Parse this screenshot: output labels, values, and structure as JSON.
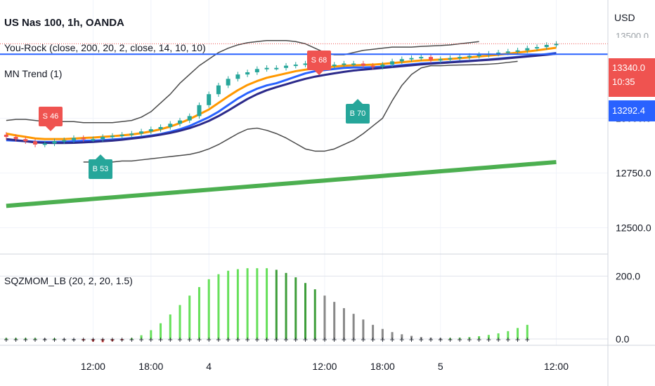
{
  "header": {
    "title": "US Nas 100, 1h, OANDA",
    "indicator1": "You-Rock (close, 200, 20, 2, close, 14, 10, 10)",
    "indicator2": "MN Trend (1)"
  },
  "oscillator": {
    "title": "SQZMOM_LB (20, 2, 20, 1.5)"
  },
  "price_axis": {
    "currency": "USD",
    "top_tick_partial": "13500.0",
    "current_price": "13340.0",
    "countdown": "10:35",
    "line_price": "13292.4"
  },
  "colors": {
    "up_candle": "#26a69a",
    "down_candle": "#ef5350",
    "ema_orange": "#ff9800",
    "ema_blue": "#2962ff",
    "ema_navy": "#2c2a8a",
    "band_gray": "#4a4a4a",
    "ema200_green": "#4caf50",
    "hline_blue": "#2962ff",
    "mom_light_green": "#66e05a",
    "mom_dark_green": "#3e9e3a",
    "mom_gray": "#888888",
    "mom_red": "#e53935"
  },
  "signals": [
    {
      "label": "S 46",
      "type": "sell"
    },
    {
      "label": "B 53",
      "type": "buy"
    },
    {
      "label": "S 68",
      "type": "sell"
    },
    {
      "label": "B 70",
      "type": "buy"
    }
  ],
  "chart_data": [
    {
      "type": "line",
      "panel": "price",
      "title": "US Nas 100, 1h, OANDA",
      "y_ticks": [
        12500,
        12750,
        13000
      ],
      "y_tick_labels": [
        "12500.0",
        "12750.0",
        "13000.0"
      ],
      "ylim": [
        12380,
        13540
      ],
      "x_tick_labels": [
        "12:00",
        "18:00",
        "4",
        "12:00",
        "18:00",
        "5",
        "12:00"
      ],
      "x_tick_bars": [
        10,
        16,
        22,
        34,
        40,
        46,
        58
      ],
      "xlim_bars": [
        0.5,
        63.5
      ],
      "series": [
        {
          "name": "close",
          "values": [
            12915,
            12905,
            12895,
            12880,
            12885,
            12895,
            12900,
            12910,
            12905,
            12905,
            12915,
            12920,
            12925,
            12930,
            12940,
            12950,
            12960,
            12975,
            12990,
            13010,
            13060,
            13110,
            13150,
            13180,
            13200,
            13210,
            13225,
            13230,
            13230,
            13240,
            13245,
            13250,
            13245,
            13240,
            13245,
            13250,
            13250,
            13240,
            13235,
            13245,
            13260,
            13270,
            13275,
            13280,
            13265,
            13270,
            13275,
            13280,
            13285,
            13290,
            13295,
            13300,
            13305,
            13310,
            13320,
            13325,
            13335,
            13340
          ]
        },
        {
          "name": "",
          "values": [
            12900,
            12898,
            12895,
            12893,
            12892,
            12892,
            12893,
            12895,
            12897,
            12898,
            12900,
            12903,
            12906,
            12910,
            12915,
            12921,
            12928,
            12938,
            12950,
            12965,
            12985,
            13005,
            13030,
            13060,
            13090,
            13115,
            13135,
            13150,
            13160,
            13175,
            13190,
            13205,
            13215,
            13220,
            13225,
            13230,
            13232,
            13232,
            13233,
            13235,
            13238,
            13242,
            13246,
            13250,
            13252,
            13254,
            13257,
            13260,
            13262,
            13265,
            13268,
            13272,
            13276,
            13280,
            13284,
            13288,
            13293,
            13298
          ]
        },
        {
          "name": "",
          "values": [
            12930,
            12922,
            12915,
            12908,
            12905,
            12905,
            12905,
            12907,
            12910,
            12912,
            12915,
            12918,
            12922,
            12926,
            12932,
            12940,
            12950,
            12962,
            12978,
            12996,
            13018,
            13040,
            13070,
            13100,
            13128,
            13152,
            13170,
            13185,
            13195,
            13205,
            13215,
            13222,
            13228,
            13232,
            13236,
            13240,
            13242,
            13243,
            13245,
            13248,
            13252,
            13256,
            13260,
            13264,
            13266,
            13268,
            13271,
            13274,
            13278,
            13282,
            13286,
            13290,
            13295,
            13300,
            13305,
            13310,
            13316,
            13322
          ]
        },
        {
          "name": "",
          "values": [
            12905,
            12900,
            12895,
            12890,
            12888,
            12887,
            12887,
            12888,
            12890,
            12892,
            12895,
            12898,
            12902,
            12907,
            12912,
            12918,
            12925,
            12933,
            12943,
            12955,
            12970,
            12988,
            13010,
            13035,
            13062,
            13088,
            13110,
            13128,
            13142,
            13155,
            13168,
            13180,
            13190,
            13198,
            13205,
            13212,
            13218,
            13222,
            13226,
            13230,
            13234,
            13238,
            13242,
            13246,
            13249,
            13252,
            13255,
            13258,
            13261,
            13264,
            13267,
            13270,
            13274,
            13278,
            13282,
            13286,
            13290,
            13295
          ]
        },
        {
          "name": "",
          "values": [
            12990,
            12995,
            12995,
            12990,
            12985,
            12985,
            12985,
            12985,
            12980,
            12980,
            12980,
            12980,
            12985,
            12990,
            13005,
            13030,
            13070,
            13110,
            13160,
            13200,
            13240,
            13270,
            13300,
            13320,
            13335,
            13345,
            13350,
            13355,
            13355,
            13355,
            13350,
            13340,
            13320,
            13300,
            13290,
            13290,
            13300,
            13310,
            13315,
            13320,
            13325,
            13325,
            13325,
            13328,
            13330,
            13332,
            13335,
            13340,
            13345,
            13350
          ]
        },
        {
          "name": "",
          "values": [
            12800,
            12800,
            12800,
            12800,
            12805,
            12805,
            12810,
            12815,
            12820,
            12825,
            12830,
            12835,
            12845,
            12860,
            12880,
            12905,
            12930,
            12950,
            12955,
            12945,
            12930,
            12910,
            12885,
            12860,
            12850,
            12850,
            12860,
            12880,
            12900,
            12930,
            12965,
            13000,
            13080,
            13150,
            13200,
            13230,
            13240,
            13240,
            13242,
            13243,
            13244,
            13245,
            13247,
            13250,
            13255,
            13260
          ]
        },
        {
          "name": "",
          "values": [
            12600,
            12605,
            12610,
            12615,
            12620,
            12625,
            12630,
            12635,
            12640,
            12645,
            12650,
            12655,
            12660,
            12665,
            12670,
            12675,
            12680,
            12685,
            12690,
            12695,
            12700,
            12705,
            12710,
            12715,
            12720,
            12725,
            12730,
            12735,
            12740,
            12745,
            12750,
            12755,
            12760,
            12765,
            12770,
            12775,
            12780,
            12785,
            12790,
            12795,
            12800
          ]
        }
      ]
    },
    {
      "type": "bar",
      "panel": "oscillator",
      "title": "SQZMOM_LB (20, 2, 20, 1.5)",
      "y_ticks": [
        0,
        200
      ],
      "y_tick_labels": [
        "0.0",
        "200.0"
      ],
      "ylim": [
        -20,
        270
      ],
      "values": [
        3,
        3,
        3,
        3,
        2,
        2,
        1,
        0,
        -5,
        -8,
        -10,
        -7,
        -4,
        3,
        12,
        28,
        50,
        78,
        108,
        138,
        165,
        190,
        206,
        217,
        222,
        225,
        225,
        225,
        220,
        210,
        196,
        178,
        158,
        138,
        118,
        98,
        80,
        62,
        45,
        32,
        22,
        15,
        10,
        6,
        4,
        3,
        3,
        4,
        6,
        9,
        13,
        18,
        25,
        35,
        45
      ],
      "zero_markers": true
    }
  ]
}
